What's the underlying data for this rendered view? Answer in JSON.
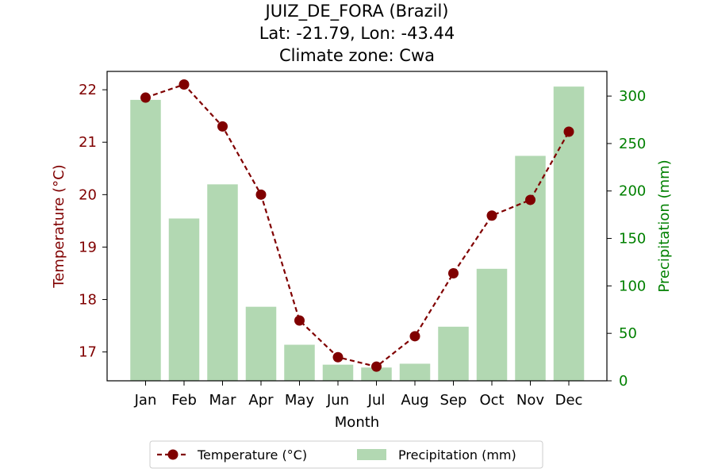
{
  "chart_data": {
    "type": "bar+line",
    "title_lines": [
      "JUIZ_DE_FORA (Brazil)",
      "Lat: -21.79, Lon: -43.44",
      "Climate zone: Cwa"
    ],
    "xlabel": "Month",
    "categories": [
      "Jan",
      "Feb",
      "Mar",
      "Apr",
      "May",
      "Jun",
      "Jul",
      "Aug",
      "Sep",
      "Oct",
      "Nov",
      "Dec"
    ],
    "temperature": {
      "name": "Temperature (°C)",
      "axis_label": "Temperature (°C)",
      "values": [
        21.85,
        22.1,
        21.3,
        20.0,
        17.6,
        16.9,
        16.72,
        17.3,
        18.5,
        19.6,
        19.9,
        21.2
      ],
      "ylim": [
        16.45,
        22.35
      ],
      "ticks": [
        17,
        18,
        19,
        20,
        21,
        22
      ],
      "color": "#800000",
      "marker_color": "#800000"
    },
    "precipitation": {
      "name": "Precipitation (mm)",
      "axis_label": "Precipitation (mm)",
      "values": [
        296,
        171,
        207,
        78,
        38,
        17,
        14,
        18,
        57,
        118,
        237,
        310
      ],
      "ylim": [
        0,
        326
      ],
      "ticks": [
        0,
        50,
        100,
        150,
        200,
        250,
        300
      ],
      "color": "#b2d8b2",
      "axis_color": "#008000"
    },
    "legend_position": "bottom-center",
    "grid": false
  }
}
